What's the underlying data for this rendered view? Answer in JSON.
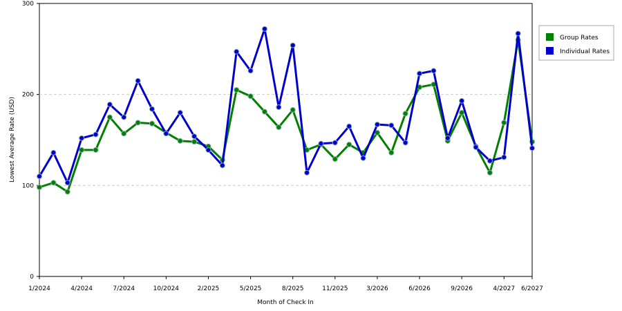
{
  "chart_data": {
    "type": "line",
    "x_label": "Month of Check In",
    "y_label": "Lowest Average Rate (USD)",
    "categories": [
      "1/2024",
      null,
      null,
      "4/2024",
      null,
      null,
      "7/2024",
      null,
      null,
      "10/2024",
      null,
      null,
      "2/2025",
      null,
      null,
      "5/2025",
      null,
      null,
      "8/2025",
      null,
      null,
      "11/2025",
      null,
      null,
      "3/2026",
      null,
      null,
      "6/2026",
      null,
      null,
      "9/2026",
      null,
      null,
      "4/2027",
      null,
      "6/2027"
    ],
    "series": [
      {
        "name": "Group Rates",
        "color": "#008000",
        "values": [
          98,
          103,
          93,
          139,
          139,
          175,
          157,
          169,
          168,
          158,
          149,
          148,
          143,
          128,
          205,
          198,
          181,
          164,
          183,
          139,
          145,
          129,
          145,
          136,
          158,
          136,
          179,
          208,
          211,
          149,
          180,
          143,
          114,
          169,
          260,
          148
        ]
      },
      {
        "name": "Individual Rates",
        "color": "#0000cc",
        "values": [
          110,
          136,
          103,
          152,
          156,
          189,
          175,
          215,
          184,
          157,
          180,
          154,
          139,
          122,
          247,
          226,
          272,
          186,
          254,
          114,
          146,
          147,
          165,
          130,
          167,
          166,
          147,
          223,
          226,
          152,
          193,
          142,
          127,
          131,
          267,
          141
        ]
      }
    ],
    "ylim": [
      0,
      300
    ],
    "yticks": [
      0,
      100,
      200,
      300
    ],
    "grid": true,
    "legend": "right"
  }
}
